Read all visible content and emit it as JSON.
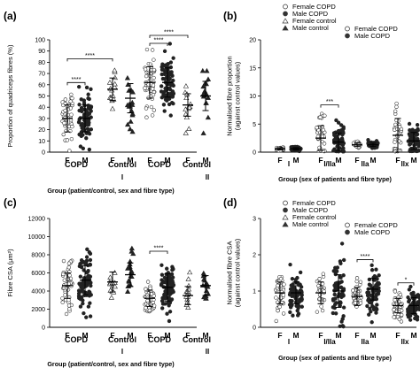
{
  "chart_data": [
    {
      "type": "scatter",
      "panel_label": "(a)",
      "ylabel": "Proportion of quadriceps fibres (%)",
      "ylim": [
        0,
        100
      ],
      "yticks": [
        "0",
        "10",
        "20",
        "30",
        "40",
        "50",
        "60",
        "70",
        "80",
        "90",
        "100"
      ],
      "xlabel": "Group  (patient/control, sex and fibre type)",
      "x_sublabels": [
        "F",
        "M",
        "F",
        "M",
        "F",
        "M",
        "F",
        "M"
      ],
      "group_labels": [
        "COPD",
        "Control",
        "COPD",
        "Control"
      ],
      "fibre_labels": [
        "I",
        "II"
      ],
      "legend": [
        "Female COPD",
        "Male COPD",
        "Female control",
        "Male control"
      ],
      "significance": [
        {
          "from": 0,
          "to": 1,
          "label": "****"
        },
        {
          "from": 0,
          "to": 2,
          "label": "****"
        },
        {
          "from": 4,
          "to": 5,
          "label": "****"
        },
        {
          "from": 4,
          "to": 6,
          "label": "****"
        }
      ],
      "series": [
        {
          "name": "Female COPD",
          "marker": "open-circle",
          "mean": 30,
          "sd": 12,
          "n": 50
        },
        {
          "name": "Male COPD",
          "marker": "filled-circle",
          "mean": 30,
          "sd": 12,
          "n": 80
        },
        {
          "name": "Female control",
          "marker": "open-triangle",
          "mean": 56,
          "sd": 10,
          "n": 15
        },
        {
          "name": "Male control",
          "marker": "filled-triangle",
          "mean": 48,
          "sd": 13,
          "n": 18
        },
        {
          "name": "Female COPD",
          "marker": "open-circle",
          "mean": 62,
          "sd": 14,
          "n": 50
        },
        {
          "name": "Male COPD",
          "marker": "filled-circle",
          "mean": 62,
          "sd": 13,
          "n": 80
        },
        {
          "name": "Female control",
          "marker": "open-triangle",
          "mean": 42,
          "sd": 10,
          "n": 15
        },
        {
          "name": "Male control",
          "marker": "filled-triangle",
          "mean": 50,
          "sd": 13,
          "n": 18
        }
      ]
    },
    {
      "type": "scatter",
      "panel_label": "(b)",
      "ylabel": "Normalised fibre proportion\n(against control values)",
      "ylim": [
        0,
        20
      ],
      "yticks": [
        "0",
        "5",
        "10",
        "15",
        "20"
      ],
      "xlabel": "Group (sex of patients and fibre type)",
      "x_sublabels": [
        "F",
        "M",
        "F",
        "M",
        "F",
        "M",
        "F",
        "M"
      ],
      "fibre_labels": [
        "I",
        "I/IIa",
        "IIa",
        "IIx"
      ],
      "legend": [
        "Female COPD",
        "Male COPD"
      ],
      "significance": [
        {
          "from": 2,
          "to": 3,
          "label": "***"
        }
      ],
      "series": [
        {
          "name": "Female COPD",
          "marker": "open-circle",
          "mean": 0.6,
          "sd": 0.2,
          "n": 30
        },
        {
          "name": "Male COPD",
          "marker": "filled-circle",
          "mean": 0.6,
          "sd": 0.2,
          "n": 50
        },
        {
          "name": "Female COPD",
          "marker": "open-circle",
          "mean": 2.5,
          "sd": 2.2,
          "n": 35
        },
        {
          "name": "Male COPD",
          "marker": "filled-circle",
          "mean": 1.8,
          "sd": 1.6,
          "n": 60
        },
        {
          "name": "Female COPD",
          "marker": "open-circle",
          "mean": 1.3,
          "sd": 0.3,
          "n": 30
        },
        {
          "name": "Male COPD",
          "marker": "filled-circle",
          "mean": 1.3,
          "sd": 0.3,
          "n": 50
        },
        {
          "name": "Female COPD",
          "marker": "open-circle",
          "mean": 3,
          "sd": 3,
          "n": 35
        },
        {
          "name": "Male COPD",
          "marker": "filled-circle",
          "mean": 2,
          "sd": 1.5,
          "n": 60
        }
      ]
    },
    {
      "type": "scatter",
      "panel_label": "(c)",
      "ylabel": "Fibre CSA (μm²)",
      "ylim": [
        0,
        12000
      ],
      "yticks": [
        "0",
        "2000",
        "4000",
        "6000",
        "8000",
        "10000",
        "12000"
      ],
      "xlabel": "Group  (patient/control, sex and fibre type)",
      "x_sublabels": [
        "F",
        "M",
        "F",
        "M",
        "F",
        "M",
        "F",
        "M"
      ],
      "group_labels": [
        "COPD",
        "Control",
        "COPD",
        "Control"
      ],
      "fibre_labels": [
        "I",
        "II"
      ],
      "legend": [
        "Female COPD",
        "Male COPD",
        "Female control",
        "Male control"
      ],
      "significance": [
        {
          "from": 4,
          "to": 5,
          "label": "****"
        }
      ],
      "series": [
        {
          "name": "Female COPD",
          "marker": "open-circle",
          "mean": 4600,
          "sd": 1400,
          "n": 50
        },
        {
          "name": "Male COPD",
          "marker": "filled-circle",
          "mean": 5200,
          "sd": 1600,
          "n": 80
        },
        {
          "name": "Female control",
          "marker": "open-triangle",
          "mean": 5000,
          "sd": 1100,
          "n": 15
        },
        {
          "name": "Male control",
          "marker": "filled-triangle",
          "mean": 5800,
          "sd": 1300,
          "n": 18
        },
        {
          "name": "Female COPD",
          "marker": "open-circle",
          "mean": 3200,
          "sd": 900,
          "n": 50
        },
        {
          "name": "Male COPD",
          "marker": "filled-circle",
          "mean": 4400,
          "sd": 1500,
          "n": 80
        },
        {
          "name": "Female control",
          "marker": "open-triangle",
          "mean": 3500,
          "sd": 1000,
          "n": 15
        },
        {
          "name": "Male control",
          "marker": "filled-triangle",
          "mean": 4600,
          "sd": 1100,
          "n": 18
        }
      ]
    },
    {
      "type": "scatter",
      "panel_label": "(d)",
      "ylabel": "Normalised fibre CSA\n(against control values)",
      "ylim": [
        0,
        3
      ],
      "yticks": [
        "0",
        "1",
        "2",
        "3"
      ],
      "xlabel": "Group (sex of patients and fibre type)",
      "x_sublabels": [
        "F",
        "M",
        "F",
        "M",
        "F",
        "M",
        "F",
        "M"
      ],
      "fibre_labels": [
        "I",
        "I/IIa",
        "IIa",
        "IIx"
      ],
      "legend": [
        "Female COPD",
        "Male COPD"
      ],
      "significance": [
        {
          "from": 4,
          "to": 5,
          "label": "****"
        },
        {
          "from": 6,
          "to": 7,
          "label": "*"
        }
      ],
      "series": [
        {
          "name": "Female COPD",
          "marker": "open-circle",
          "mean": 0.95,
          "sd": 0.3,
          "n": 40
        },
        {
          "name": "Male COPD",
          "marker": "filled-circle",
          "mean": 0.95,
          "sd": 0.3,
          "n": 70
        },
        {
          "name": "Female COPD",
          "marker": "open-circle",
          "mean": 0.95,
          "sd": 0.3,
          "n": 30
        },
        {
          "name": "Male COPD",
          "marker": "filled-circle",
          "mean": 1.0,
          "sd": 0.45,
          "n": 60
        },
        {
          "name": "Female COPD",
          "marker": "open-circle",
          "mean": 0.85,
          "sd": 0.25,
          "n": 40
        },
        {
          "name": "Male COPD",
          "marker": "filled-circle",
          "mean": 1.05,
          "sd": 0.3,
          "n": 70
        },
        {
          "name": "Female COPD",
          "marker": "open-circle",
          "mean": 0.6,
          "sd": 0.2,
          "n": 40
        },
        {
          "name": "Male COPD",
          "marker": "filled-circle",
          "mean": 0.6,
          "sd": 0.22,
          "n": 70
        }
      ]
    }
  ]
}
